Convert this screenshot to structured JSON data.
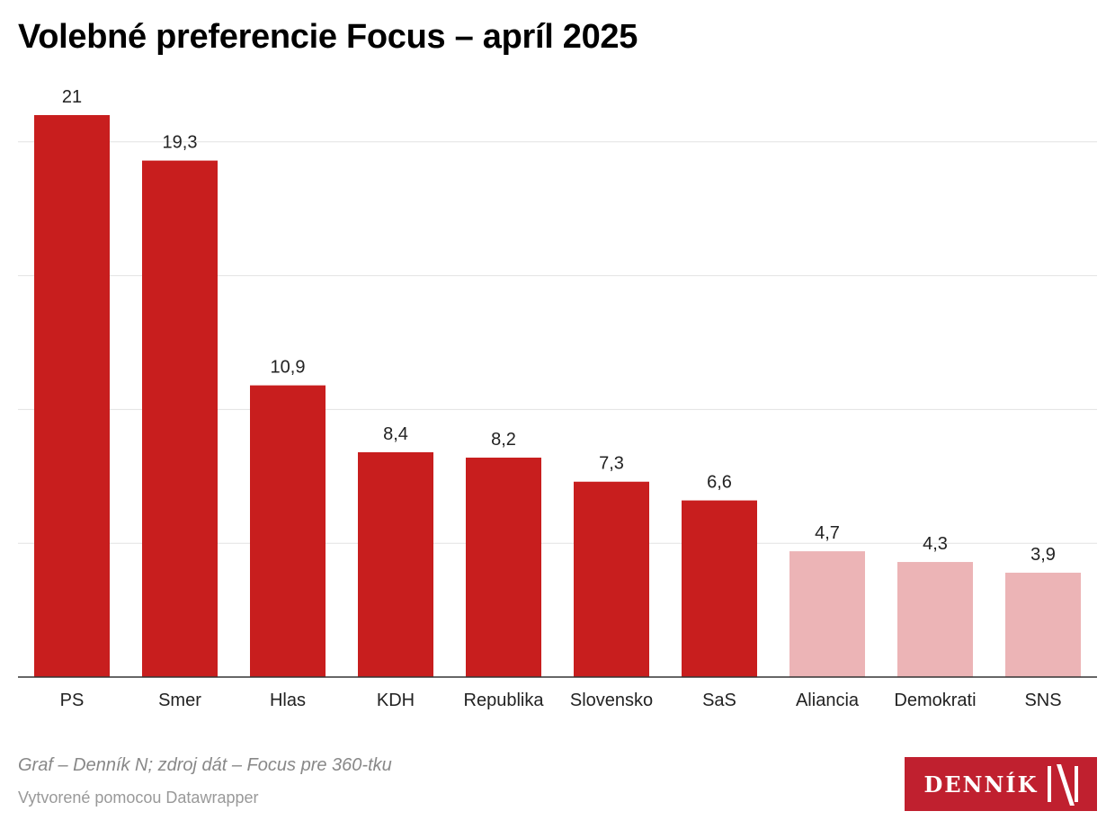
{
  "chart_data": {
    "type": "bar",
    "title": "Volebné preferencie Focus – apríl 2025",
    "categories": [
      "PS",
      "Smer",
      "Hlas",
      "KDH",
      "Republika",
      "Slovensko",
      "SaS",
      "Aliancia",
      "Demokrati",
      "SNS"
    ],
    "values": [
      21,
      19.3,
      10.9,
      8.4,
      8.2,
      7.3,
      6.6,
      4.7,
      4.3,
      3.9
    ],
    "value_labels": [
      "21",
      "19,3",
      "10,9",
      "8,4",
      "8,2",
      "7,3",
      "6,6",
      "4,7",
      "4,3",
      "3,9"
    ],
    "xlabel": "",
    "ylabel": "",
    "ylim": [
      0,
      21
    ],
    "gridlines": [
      5,
      10,
      15,
      20
    ],
    "grid": true,
    "colors": {
      "above_threshold": "#c81e1e",
      "below_threshold": "#ecb4b6"
    },
    "threshold": 5
  },
  "footer": {
    "source": "Graf – Denník N; zdroj dát – Focus pre 360-tku",
    "credit": "Vytvorené pomocou Datawrapper"
  },
  "logo": {
    "text": "DENNÍK N"
  }
}
